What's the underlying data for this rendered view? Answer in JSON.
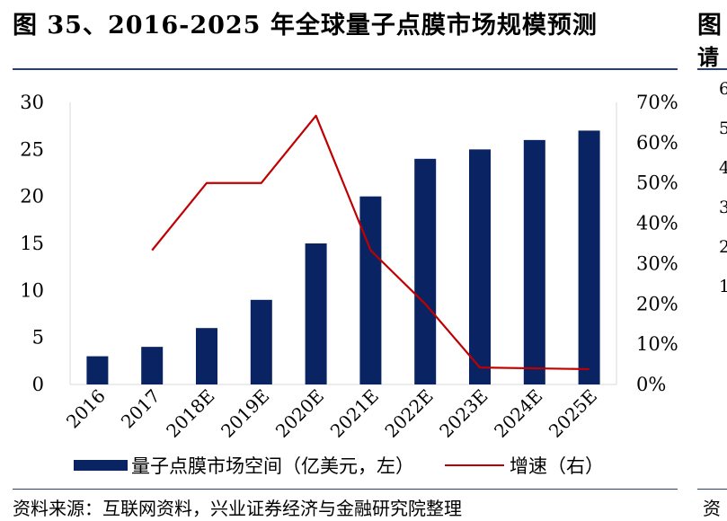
{
  "header": {
    "title": "图 35、2016-2025 年全球量子点膜市场规模预测",
    "right_title": "图",
    "right_subtitle": "请",
    "right_ticks": [
      "6",
      "5",
      "4",
      "3",
      "2",
      "1"
    ]
  },
  "footer": {
    "source": "资料来源：互联网资料，兴业证券经济与金融研究院整理",
    "right_source": "资"
  },
  "legend": {
    "bar_label": "量子点膜市场空间（亿美元，左）",
    "line_label": "增速（右）"
  },
  "colors": {
    "bar": "#0a2463",
    "line": "#c00000",
    "axis": "#d9d9d9"
  },
  "chart_data": {
    "type": "bar",
    "title": "2016-2025 年全球量子点膜市场规模预测",
    "categories": [
      "2016",
      "2017",
      "2018E",
      "2019E",
      "2020E",
      "2021E",
      "2022E",
      "2023E",
      "2024E",
      "2025E"
    ],
    "series": [
      {
        "name": "量子点膜市场空间（亿美元，左）",
        "type": "bar",
        "axis": "left",
        "values": [
          3,
          4,
          6,
          9,
          15,
          20,
          24,
          25,
          26,
          27
        ]
      },
      {
        "name": "增速（右）",
        "type": "line",
        "axis": "right",
        "values": [
          null,
          33.3,
          50.0,
          50.0,
          66.7,
          33.3,
          20.0,
          4.2,
          4.0,
          3.8
        ]
      }
    ],
    "y_left": {
      "min": 0,
      "max": 30,
      "ticks": [
        0,
        5,
        10,
        15,
        20,
        25,
        30
      ]
    },
    "y_right": {
      "min": 0,
      "max": 70,
      "ticks": [
        0,
        10,
        20,
        30,
        40,
        50,
        60,
        70
      ],
      "tick_labels": [
        "0%",
        "10%",
        "20%",
        "30%",
        "40%",
        "50%",
        "60%",
        "70%"
      ]
    },
    "grid": false,
    "legend_position": "bottom"
  }
}
